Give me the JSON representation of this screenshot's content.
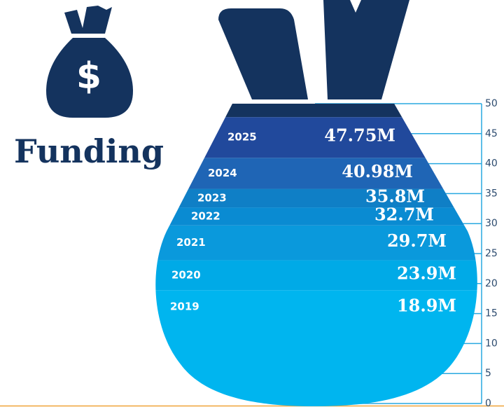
{
  "chart_data": {
    "type": "bag",
    "title": "Funding",
    "icon_label": "$",
    "categories": [
      "2019",
      "2020",
      "2021",
      "2022",
      "2023",
      "2024",
      "2025"
    ],
    "values": [
      18.9,
      23.9,
      29.7,
      32.7,
      35.8,
      40.98,
      47.75
    ],
    "value_labels": [
      "18.9M",
      "23.9M",
      "29.7M",
      "32.7M",
      "35.8M",
      "40.98M",
      "47.75M"
    ],
    "colors": [
      "#00b5ef",
      "#00aae7",
      "#0a99dc",
      "#0a8bd2",
      "#0f7fc6",
      "#1f65b5",
      "#21499c"
    ],
    "cap_color": "#14335e",
    "ylim": [
      0,
      50
    ],
    "yticks": [
      0,
      5,
      10,
      15,
      20,
      25,
      30,
      35,
      40,
      45,
      50
    ]
  }
}
